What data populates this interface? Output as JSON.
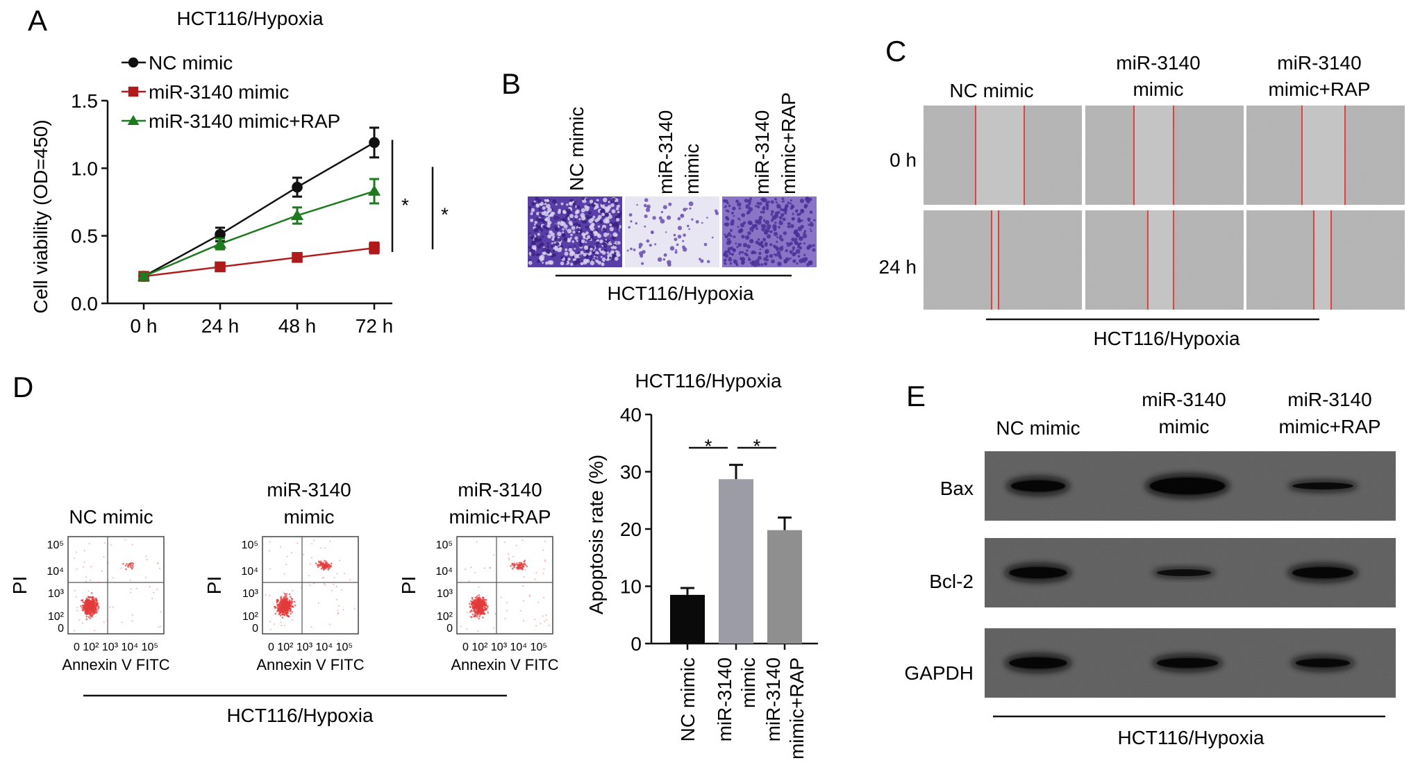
{
  "panel_letters": {
    "a": "A",
    "b": "B",
    "c": "C",
    "d": "D",
    "e": "E"
  },
  "colors": {
    "nc": "#111111",
    "mir": "#b11a1a",
    "rap": "#1e7a1e",
    "bar_nc": "#0a0a0a",
    "bar_mir": "#9c9ca6",
    "bar_rap": "#8f8f8f",
    "cell_stain": "#6a4fb0",
    "scatter": "#e23b3b",
    "scratch_line": "#e04040"
  },
  "panel_a": {
    "chart_data": {
      "type": "line",
      "title": "HCT116/Hypoxia",
      "ylabel": "Cell viability (OD=450)",
      "xlabel": "",
      "categories": [
        "0 h",
        "24 h",
        "48 h",
        "72 h"
      ],
      "ylim": [
        0.0,
        1.5
      ],
      "yticks": [
        "0.0",
        "0.5",
        "1.0",
        "1.5"
      ],
      "legend": "top-left",
      "series": [
        {
          "name": "NC mimic",
          "values": [
            0.2,
            0.51,
            0.86,
            1.19
          ],
          "errors": [
            0.02,
            0.05,
            0.07,
            0.11
          ],
          "marker": "circle"
        },
        {
          "name": "miR-3140 mimic",
          "values": [
            0.2,
            0.27,
            0.34,
            0.41
          ],
          "errors": [
            0.02,
            0.03,
            0.03,
            0.04
          ],
          "marker": "square"
        },
        {
          "name": "miR-3140 mimic+RAP",
          "values": [
            0.2,
            0.44,
            0.65,
            0.83
          ],
          "errors": [
            0.02,
            0.04,
            0.06,
            0.09
          ],
          "marker": "triangle"
        }
      ],
      "significance": [
        "*",
        "*"
      ]
    }
  },
  "panel_b": {
    "labels": [
      "NC mimic",
      "miR-3140",
      "mimic",
      "miR-3140",
      "mimic+RAP"
    ],
    "group_label": "HCT116/Hypoxia"
  },
  "panel_c": {
    "col_labels": [
      "NC mimic",
      "miR-3140",
      "mimic",
      "miR-3140",
      "mimic+RAP"
    ],
    "row_labels": [
      "0 h",
      "24 h"
    ],
    "group_label": "HCT116/Hypoxia"
  },
  "panel_d": {
    "flow_titles": [
      "NC mimic",
      "miR-3140",
      "mimic",
      "miR-3140",
      "mimic+RAP"
    ],
    "flow_ylabel": "PI",
    "flow_xlabel": "Annexin V FITC",
    "flow_yticks": [
      "10⁵",
      "10⁴",
      "10³",
      "10²",
      "0"
    ],
    "flow_xticks": "0 10² 10³ 10⁴ 10⁵",
    "group_label": "HCT116/Hypoxia",
    "chart_data": {
      "type": "bar",
      "title": "HCT116/Hypoxia",
      "ylabel": "Apoptosis rate (%)",
      "categories": [
        "NC mimic",
        "miR-3140 mimic",
        "miR-3140 mimic+RAP"
      ],
      "category_lines": [
        [
          "NC mimic"
        ],
        [
          "miR-3140",
          "mimic"
        ],
        [
          "miR-3140",
          "mimic+RAP"
        ]
      ],
      "values": [
        8.5,
        28.7,
        19.8
      ],
      "errors": [
        1.2,
        2.5,
        2.2
      ],
      "ylim": [
        0,
        40
      ],
      "yticks": [
        "0",
        "10",
        "20",
        "30",
        "40"
      ],
      "significance": [
        "*",
        "*"
      ]
    }
  },
  "panel_e": {
    "col_labels": [
      "NC mimic",
      "miR-3140",
      "mimic",
      "miR-3140",
      "mimic+RAP"
    ],
    "row_labels": [
      "Bax",
      "Bcl-2",
      "GAPDH"
    ],
    "group_label": "HCT116/Hypoxia"
  }
}
